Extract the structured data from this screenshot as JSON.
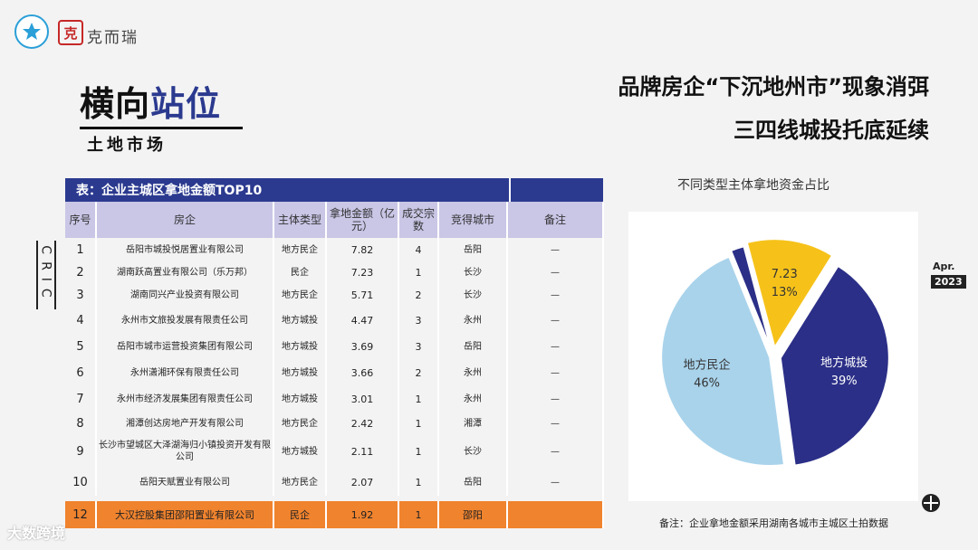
{
  "brand": {
    "name": "克而瑞",
    "seal": "克"
  },
  "section": {
    "title_a": "横向",
    "title_b": "站位",
    "subtitle": "土地市场"
  },
  "headline": {
    "line1": "品牌房企“下沉地州市”现象消弭",
    "line2": "三四线城投托底延续"
  },
  "side_label": "CRIC",
  "date": {
    "month": "Apr.",
    "year": "2023"
  },
  "table": {
    "title": "表：企业主城区拿地金额TOP10",
    "headers": [
      "序号",
      "房企",
      "主体类型",
      "拿地金额（亿元）",
      "成交宗数",
      "竞得城市",
      "备注"
    ],
    "rows": [
      {
        "idx": "1",
        "company": "岳阳市城投悦居置业有限公司",
        "type": "地方民企",
        "amount": "7.82",
        "count": "4",
        "city": "岳阳",
        "note": "—"
      },
      {
        "idx": "2",
        "company": "湖南跃高置业有限公司（乐万邦）",
        "type": "民企",
        "amount": "7.23",
        "count": "1",
        "city": "长沙",
        "note": "—"
      },
      {
        "idx": "3",
        "company": "湖南同兴产业投资有限公司",
        "type": "地方民企",
        "amount": "5.71",
        "count": "2",
        "city": "长沙",
        "note": "—"
      },
      {
        "idx": "4",
        "company": "永州市文旅投发展有限责任公司",
        "type": "地方城投",
        "amount": "4.47",
        "count": "3",
        "city": "永州",
        "note": "—"
      },
      {
        "idx": "5",
        "company": "岳阳市城市运营投资集团有限公司",
        "type": "地方城投",
        "amount": "3.69",
        "count": "3",
        "city": "岳阳",
        "note": "—"
      },
      {
        "idx": "6",
        "company": "永州潇湘环保有限责任公司",
        "type": "地方城投",
        "amount": "3.66",
        "count": "2",
        "city": "永州",
        "note": "—"
      },
      {
        "idx": "7",
        "company": "永州市经济发展集团有限责任公司",
        "type": "地方城投",
        "amount": "3.01",
        "count": "1",
        "city": "永州",
        "note": "—"
      },
      {
        "idx": "8",
        "company": "湘潭创达房地产开发有限公司",
        "type": "地方民企",
        "amount": "2.42",
        "count": "1",
        "city": "湘潭",
        "note": "—"
      },
      {
        "idx": "9",
        "company": "长沙市望城区大泽湖海归小镇投资开发有限公司",
        "type": "地方城投",
        "amount": "2.11",
        "count": "1",
        "city": "长沙",
        "note": "—"
      },
      {
        "idx": "10",
        "company": "岳阳天赋置业有限公司",
        "type": "地方民企",
        "amount": "2.07",
        "count": "1",
        "city": "岳阳",
        "note": "—"
      }
    ],
    "highlight_row": {
      "idx": "12",
      "company": "大汉控股集团邵阳置业有限公司",
      "type": "民企",
      "amount": "1.92",
      "count": "1",
      "city": "邵阳",
      "note": ""
    }
  },
  "chart_data": {
    "type": "pie",
    "title": "不同类型主体拿地资金占比",
    "slices": [
      {
        "label": "地方城投",
        "value": 39,
        "display": "39%",
        "color": "#2b2f87"
      },
      {
        "label": "地方民企",
        "value": 46,
        "display": "46%",
        "color": "#a9d3eb"
      },
      {
        "label": "",
        "value": 2,
        "display": "",
        "color": "#2b2f87"
      },
      {
        "label": "7.23",
        "value": 13,
        "display": "13%",
        "color": "#f6c21a"
      }
    ]
  },
  "note": "备注：企业拿地金额采用湖南各城市主城区土拍数据",
  "watermark": "大数跨境"
}
